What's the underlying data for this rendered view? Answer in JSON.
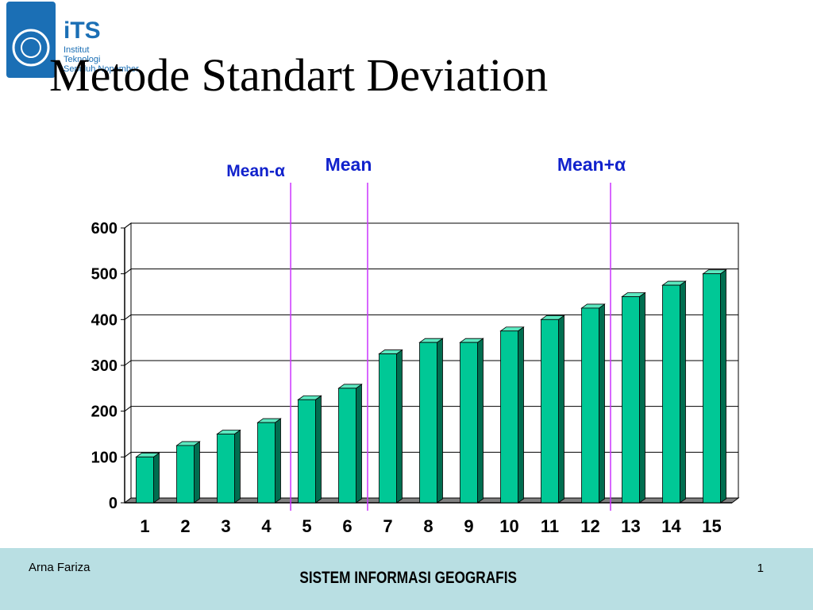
{
  "logo": {
    "name": "iTS",
    "line1": "Institut",
    "line2": "Teknologi",
    "line3": "Sepuluh Nopember",
    "color": "#1b6fb5"
  },
  "slide": {
    "title": "Metode Standart Deviation"
  },
  "chart_data": {
    "type": "bar",
    "style": "3d",
    "title": "",
    "xlabel": "",
    "ylabel": "",
    "categories": [
      "1",
      "2",
      "3",
      "4",
      "5",
      "6",
      "7",
      "8",
      "9",
      "10",
      "11",
      "12",
      "13",
      "14",
      "15"
    ],
    "values": [
      100,
      125,
      150,
      175,
      225,
      250,
      325,
      350,
      350,
      375,
      400,
      425,
      450,
      475,
      500
    ],
    "ylim": [
      0,
      600
    ],
    "yticks": [
      0,
      100,
      200,
      300,
      400,
      500,
      600
    ],
    "grid": true,
    "legend": "none",
    "bar_color": "#00c896",
    "markers": [
      {
        "label": "Mean-α",
        "x": 4.6,
        "color": "#cc33ff",
        "label_color": "#1122cc"
      },
      {
        "label": "Mean",
        "x": 6.5,
        "color": "#cc33ff",
        "label_color": "#1122cc"
      },
      {
        "label": "Mean+α",
        "x": 12.5,
        "color": "#cc33ff",
        "label_color": "#1122cc"
      }
    ]
  },
  "footer": {
    "author": "Arna Fariza",
    "course": "SISTEM INFORMASI GEOGRAFIS",
    "page": "1"
  }
}
